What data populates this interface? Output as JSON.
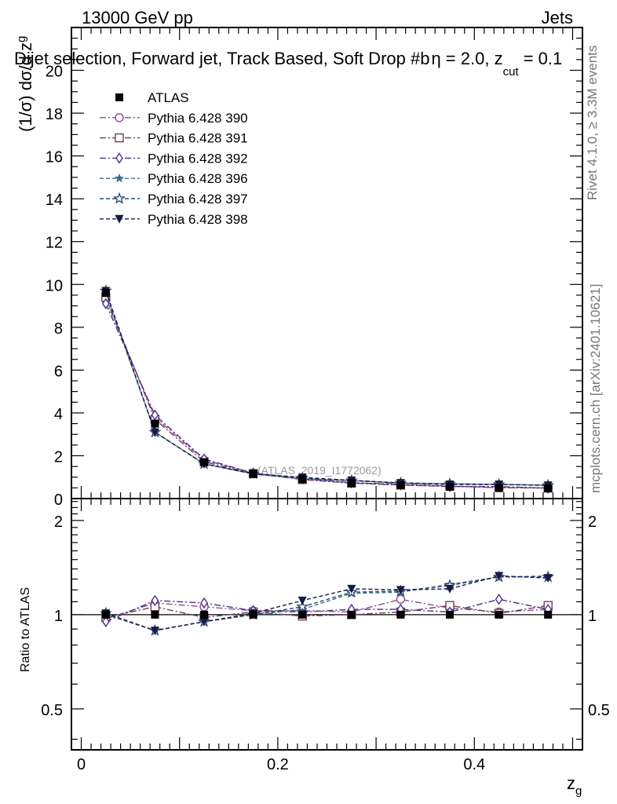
{
  "header": {
    "energy_label": "13000 GeV pp",
    "category_label": "Jets",
    "plot_title": "Dijet selection, Forward jet, Track Based, Soft Drop #b",
    "title_eta": "η = 2.0, z",
    "title_cut": "cut",
    "title_tail": " = 0.1"
  },
  "side": {
    "rivet": "Rivet 4.1.0, ≥ 3.3M events",
    "mcplots": "mcplots.cern.ch [arXiv:2401.10621]"
  },
  "watermark": "(ATLAS_2019_I1772062)",
  "axes": {
    "upper_ylabel_main": "(1/σ) dσ/d z",
    "upper_ylabel_sub": "g",
    "lower_ylabel": "Ratio to ATLAS",
    "xlabel_main": "z",
    "xlabel_sub": "g"
  },
  "chart_data": [
    {
      "type": "line",
      "panel": "main",
      "title": "Dijet selection, Forward jet, Track Based, Soft Drop #b η = 2.0, z_cut = 0.1",
      "xlabel": "z_g",
      "ylabel": "(1/σ) dσ/d z_g",
      "xlim": [
        -0.01,
        0.51
      ],
      "ylim": [
        0,
        22
      ],
      "x_ticks": [
        0,
        0.2,
        0.4
      ],
      "x_tick_labels": [
        "0",
        "0.2",
        "0.4"
      ],
      "y_ticks": [
        0,
        2,
        4,
        6,
        8,
        10,
        12,
        14,
        16,
        18,
        20
      ],
      "y_tick_labels": [
        "0",
        "2",
        "4",
        "6",
        "8",
        "10",
        "12",
        "14",
        "16",
        "18",
        "20"
      ],
      "legend_position": "top-left",
      "x": [
        0.025,
        0.075,
        0.125,
        0.175,
        0.225,
        0.275,
        0.325,
        0.375,
        0.425,
        0.475
      ],
      "series": [
        {
          "name": "ATLAS",
          "color": "#000000",
          "marker": "square-filled",
          "dash": "",
          "values": [
            9.6,
            3.5,
            1.7,
            1.15,
            0.9,
            0.72,
            0.62,
            0.55,
            0.5,
            0.47
          ]
        },
        {
          "name": "Pythia 6.428 390",
          "color": "#8b4d8e",
          "marker": "circle-open",
          "dash": "8,3,2,3",
          "values": [
            9.3,
            3.8,
            1.8,
            1.19,
            0.93,
            0.73,
            0.69,
            0.58,
            0.51,
            0.49
          ]
        },
        {
          "name": "Pythia 6.428 391",
          "color": "#6e3d55",
          "marker": "square-open",
          "dash": "8,3,2,3",
          "values": [
            9.4,
            3.7,
            1.72,
            1.17,
            0.89,
            0.72,
            0.63,
            0.58,
            0.51,
            0.5
          ]
        },
        {
          "name": "Pythia 6.428 392",
          "color": "#4e2e8e",
          "marker": "diamond-open",
          "dash": "8,3,2,3",
          "values": [
            9.1,
            3.9,
            1.85,
            1.19,
            0.92,
            0.74,
            0.64,
            0.56,
            0.56,
            0.49
          ]
        },
        {
          "name": "Pythia 6.428 396",
          "color": "#3f6f86",
          "marker": "star-filled",
          "dash": "5,3",
          "values": [
            9.6,
            3.1,
            1.63,
            1.15,
            0.93,
            0.84,
            0.73,
            0.69,
            0.66,
            0.63
          ]
        },
        {
          "name": "Pythia 6.428 397",
          "color": "#2a4a6e",
          "marker": "star-open",
          "dash": "5,3",
          "values": [
            9.7,
            3.1,
            1.62,
            1.15,
            0.95,
            0.84,
            0.73,
            0.69,
            0.66,
            0.62
          ]
        },
        {
          "name": "Pythia 6.428 398",
          "color": "#161a45",
          "marker": "triangle-down-filled",
          "dash": "5,3",
          "values": [
            9.7,
            3.1,
            1.62,
            1.16,
            0.99,
            0.85,
            0.73,
            0.66,
            0.66,
            0.62
          ]
        }
      ]
    },
    {
      "type": "line",
      "panel": "ratio",
      "ylabel": "Ratio to ATLAS",
      "xlabel": "z_g",
      "xlim": [
        -0.01,
        0.51
      ],
      "ylim": [
        0.37,
        2.35
      ],
      "y_ticks": [
        0.5,
        1,
        2
      ],
      "y_tick_labels": [
        "0.5",
        "1",
        "2"
      ],
      "reference_line": 1,
      "x": [
        0.025,
        0.075,
        0.125,
        0.175,
        0.225,
        0.275,
        0.325,
        0.375,
        0.425,
        0.475
      ],
      "series": [
        {
          "name": "Pythia 6.428 390",
          "color": "#8b4d8e",
          "marker": "circle-open",
          "dash": "8,3,2,3",
          "values": [
            0.97,
            1.09,
            1.06,
            1.03,
            1.03,
            1.02,
            1.12,
            1.05,
            1.02,
            1.04
          ]
        },
        {
          "name": "Pythia 6.428 391",
          "color": "#6e3d55",
          "marker": "square-open",
          "dash": "8,3,2,3",
          "values": [
            0.98,
            1.06,
            0.98,
            1.02,
            0.99,
            1.0,
            1.02,
            1.07,
            1.01,
            1.07
          ]
        },
        {
          "name": "Pythia 6.428 392",
          "color": "#4e2e8e",
          "marker": "diamond-open",
          "dash": "8,3,2,3",
          "values": [
            0.95,
            1.11,
            1.09,
            1.03,
            1.02,
            1.04,
            1.04,
            1.02,
            1.12,
            1.04
          ]
        },
        {
          "name": "Pythia 6.428 396",
          "color": "#3f6f86",
          "marker": "star-filled",
          "dash": "5,3",
          "values": [
            1.0,
            0.89,
            0.95,
            1.0,
            1.04,
            1.17,
            1.18,
            1.25,
            1.32,
            1.33
          ]
        },
        {
          "name": "Pythia 6.428 397",
          "color": "#2a4a6e",
          "marker": "star-open",
          "dash": "5,3",
          "values": [
            1.01,
            0.89,
            0.95,
            1.0,
            1.06,
            1.18,
            1.19,
            1.24,
            1.32,
            1.32
          ]
        },
        {
          "name": "Pythia 6.428 398",
          "color": "#161a45",
          "marker": "triangle-down-filled",
          "dash": "5,3",
          "values": [
            1.01,
            0.89,
            0.95,
            1.01,
            1.11,
            1.21,
            1.2,
            1.21,
            1.33,
            1.31
          ]
        }
      ]
    }
  ]
}
